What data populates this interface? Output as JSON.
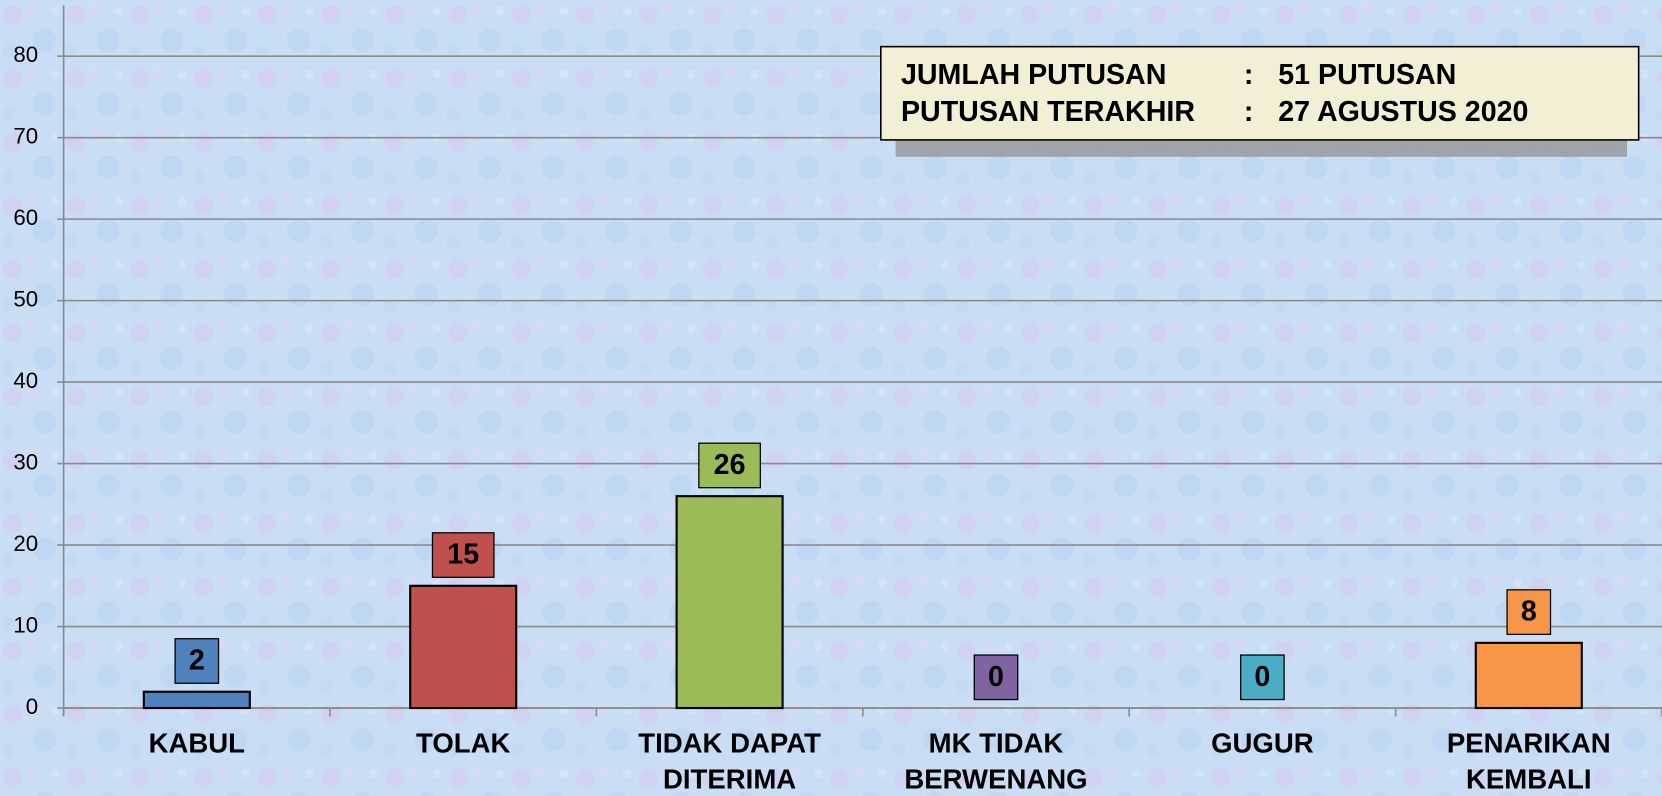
{
  "chart_data": {
    "type": "bar",
    "categories": [
      "KABUL",
      "TOLAK",
      "TIDAK DAPAT DITERIMA",
      "MK TIDAK BERWENANG",
      "GUGUR",
      "PENARIKAN KEMBALI"
    ],
    "values": [
      2,
      15,
      26,
      0,
      0,
      8
    ],
    "colors": [
      "#4f81bd",
      "#c0504d",
      "#9bbb59",
      "#8064a2",
      "#4bacc6",
      "#f79646"
    ],
    "ylim": [
      0,
      80
    ],
    "yticks": [
      0,
      10,
      20,
      30,
      40,
      50,
      60,
      70,
      80
    ],
    "grid": true,
    "annotation": {
      "rows": [
        [
          "JUMLAH PUTUSAN",
          ":",
          "51 PUTUSAN"
        ],
        [
          "PUTUSAN TERAKHIR",
          ":",
          "27 AGUSTUS 2020"
        ]
      ]
    }
  }
}
